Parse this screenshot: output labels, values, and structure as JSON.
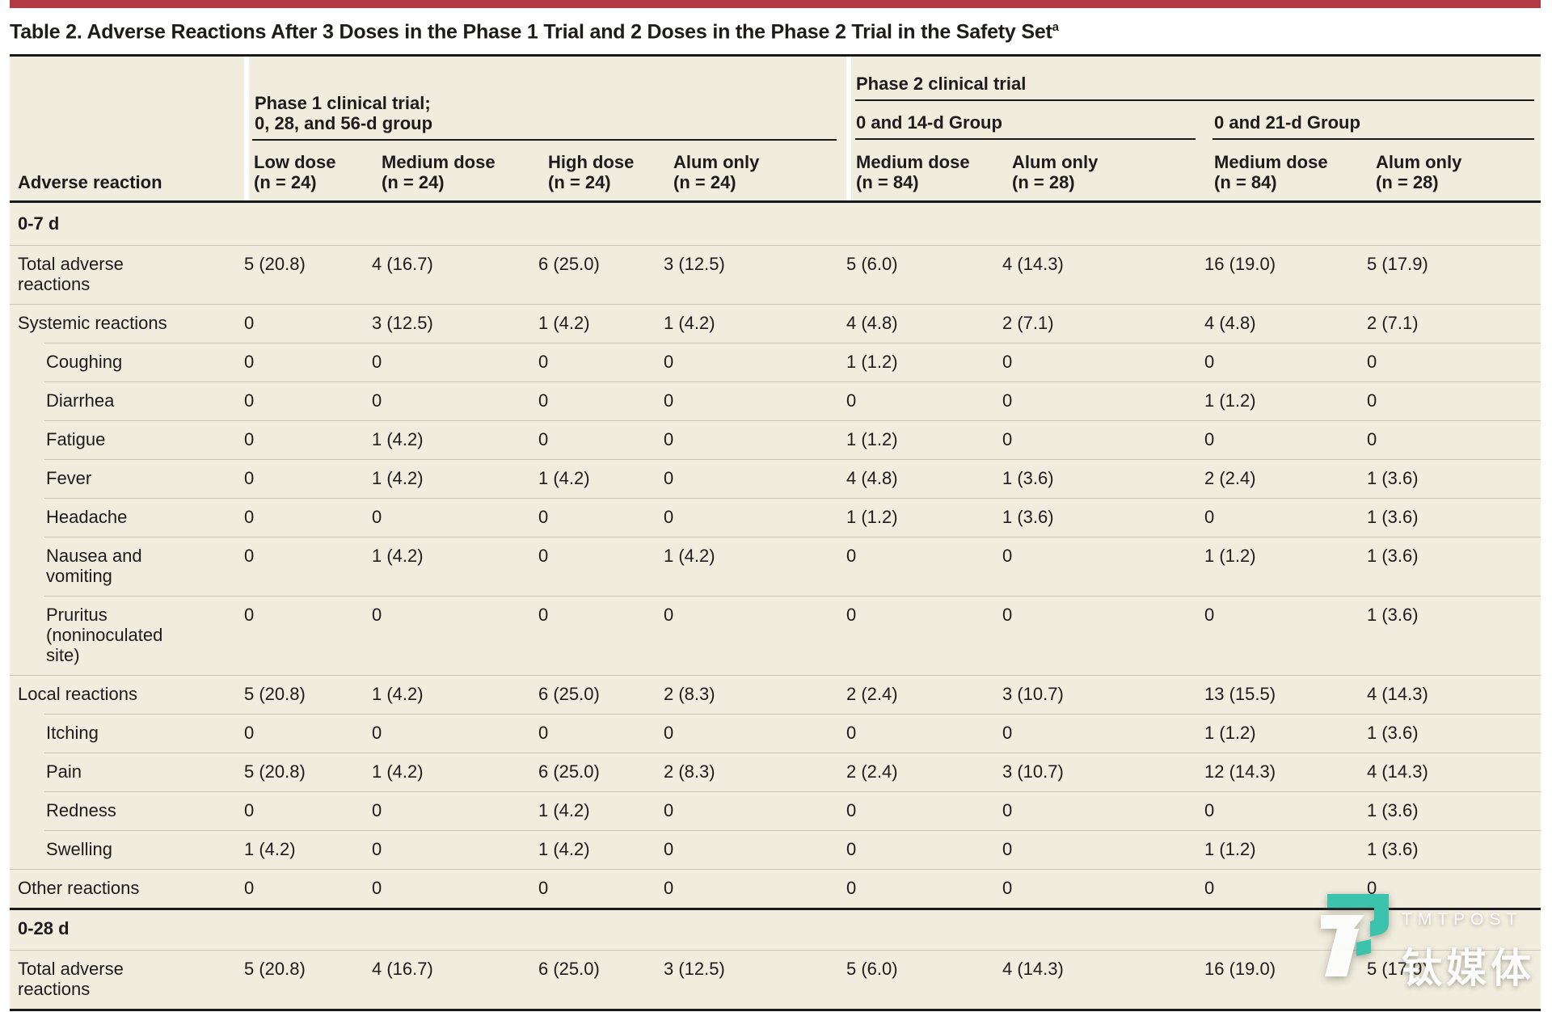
{
  "page": {
    "background": "#ffffff",
    "accent_bar_color": "#b23b43",
    "table_bg": "#f0ecde",
    "rule_color": "#1a1a1a",
    "hairline_color": "#c9c5b5",
    "text_color": "#1d1c1a"
  },
  "title": {
    "text": "Table 2. Adverse Reactions After 3 Doses in the Phase 1 Trial and 2 Doses in the Phase 2 Trial in the Safety Set",
    "footnote_marker": "a"
  },
  "table": {
    "stub_header": "Adverse reaction",
    "phase1": {
      "label": "Phase 1 clinical trial;\n0, 28, and 56-d group",
      "columns": [
        "Low dose\n(n = 24)",
        "Medium dose\n(n = 24)",
        "High dose\n(n = 24)",
        "Alum only\n(n = 24)"
      ]
    },
    "phase2": {
      "label": "Phase 2 clinical trial",
      "subgroups": [
        {
          "label": "0 and 14-d Group",
          "columns": [
            "Medium dose\n(n = 84)",
            "Alum only\n(n = 28)"
          ]
        },
        {
          "label": "0 and 21-d Group",
          "columns": [
            "Medium dose\n(n = 84)",
            "Alum only\n(n = 28)"
          ]
        }
      ]
    },
    "sections": [
      {
        "label": "0-7 d",
        "rule": "none",
        "rows": [
          {
            "label": "Total adverse\nreactions",
            "indent": false,
            "values": [
              "5 (20.8)",
              "4 (16.7)",
              "6 (25.0)",
              "3 (12.5)",
              "5 (6.0)",
              "4 (14.3)",
              "16 (19.0)",
              "5 (17.9)"
            ]
          },
          {
            "label": "Systemic reactions",
            "indent": false,
            "values": [
              "0",
              "3 (12.5)",
              "1 (4.2)",
              "1 (4.2)",
              "4 (4.8)",
              "2 (7.1)",
              "4 (4.8)",
              "2 (7.1)"
            ]
          },
          {
            "label": "Coughing",
            "indent": true,
            "values": [
              "0",
              "0",
              "0",
              "0",
              "1 (1.2)",
              "0",
              "0",
              "0"
            ]
          },
          {
            "label": "Diarrhea",
            "indent": true,
            "values": [
              "0",
              "0",
              "0",
              "0",
              "0",
              "0",
              "1 (1.2)",
              "0"
            ]
          },
          {
            "label": "Fatigue",
            "indent": true,
            "values": [
              "0",
              "1 (4.2)",
              "0",
              "0",
              "1 (1.2)",
              "0",
              "0",
              "0"
            ]
          },
          {
            "label": "Fever",
            "indent": true,
            "values": [
              "0",
              "1 (4.2)",
              "1 (4.2)",
              "0",
              "4 (4.8)",
              "1 (3.6)",
              "2 (2.4)",
              "1 (3.6)"
            ]
          },
          {
            "label": "Headache",
            "indent": true,
            "values": [
              "0",
              "0",
              "0",
              "0",
              "1 (1.2)",
              "1 (3.6)",
              "0",
              "1 (3.6)"
            ]
          },
          {
            "label": "Nausea and\nvomiting",
            "indent": true,
            "values": [
              "0",
              "1 (4.2)",
              "0",
              "1 (4.2)",
              "0",
              "0",
              "1 (1.2)",
              "1 (3.6)"
            ]
          },
          {
            "label": "Pruritus\n(noninoculated\nsite)",
            "indent": true,
            "values": [
              "0",
              "0",
              "0",
              "0",
              "0",
              "0",
              "0",
              "1 (3.6)"
            ]
          },
          {
            "label": "Local reactions",
            "indent": false,
            "values": [
              "5 (20.8)",
              "1 (4.2)",
              "6 (25.0)",
              "2 (8.3)",
              "2 (2.4)",
              "3 (10.7)",
              "13 (15.5)",
              "4 (14.3)"
            ]
          },
          {
            "label": "Itching",
            "indent": true,
            "values": [
              "0",
              "0",
              "0",
              "0",
              "0",
              "0",
              "1 (1.2)",
              "1 (3.6)"
            ]
          },
          {
            "label": "Pain",
            "indent": true,
            "values": [
              "5 (20.8)",
              "1 (4.2)",
              "6 (25.0)",
              "2 (8.3)",
              "2 (2.4)",
              "3 (10.7)",
              "12 (14.3)",
              "4 (14.3)"
            ]
          },
          {
            "label": "Redness",
            "indent": true,
            "values": [
              "0",
              "0",
              "1 (4.2)",
              "0",
              "0",
              "0",
              "0",
              "1 (3.6)"
            ]
          },
          {
            "label": "Swelling",
            "indent": true,
            "values": [
              "1 (4.2)",
              "0",
              "1 (4.2)",
              "0",
              "0",
              "0",
              "1 (1.2)",
              "1 (3.6)"
            ]
          },
          {
            "label": "Other reactions",
            "indent": false,
            "values": [
              "0",
              "0",
              "0",
              "0",
              "0",
              "0",
              "0",
              "0"
            ]
          }
        ]
      },
      {
        "label": "0-28 d",
        "rule": "thick",
        "rows": [
          {
            "label": "Total adverse\nreactions",
            "indent": false,
            "values": [
              "5 (20.8)",
              "4 (16.7)",
              "6 (25.0)",
              "3 (12.5)",
              "5 (6.0)",
              "4 (14.3)",
              "16 (19.0)",
              "5 (17.9)"
            ]
          }
        ]
      }
    ]
  },
  "watermark": {
    "brand": "TMTPOST",
    "brand_cn": "钛媒体",
    "teal": "#3bc3ad"
  }
}
